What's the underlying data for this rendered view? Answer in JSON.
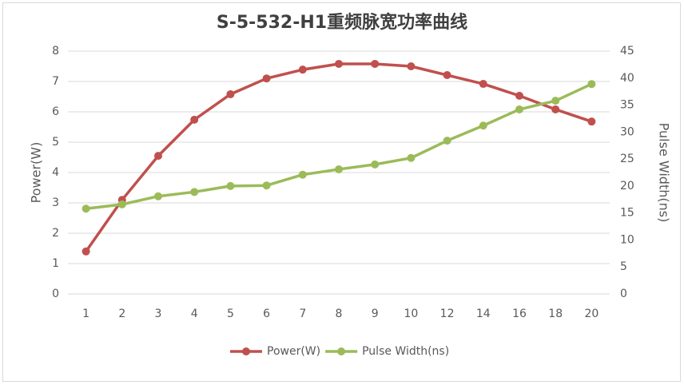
{
  "chart_data": {
    "type": "line",
    "title": "S-5-532-H1重频脉宽功率曲线",
    "categories": [
      "1",
      "2",
      "3",
      "4",
      "5",
      "6",
      "7",
      "8",
      "9",
      "10",
      "12",
      "14",
      "16",
      "18",
      "20"
    ],
    "ylabel": "Power(W)",
    "y2label": "Pulse Width(ns)",
    "ylim": [
      0,
      8
    ],
    "yticks": [
      0,
      1,
      2,
      3,
      4,
      5,
      6,
      7,
      8
    ],
    "y2lim": [
      0,
      45
    ],
    "y2ticks": [
      0,
      5,
      10,
      15,
      20,
      25,
      30,
      35,
      40,
      45
    ],
    "grid": true,
    "legend": "bottom",
    "series": [
      {
        "name": "Power(W)",
        "color": "#c0504d",
        "values": [
          1.4,
          3.1,
          4.55,
          5.74,
          6.58,
          7.1,
          7.39,
          7.58,
          7.58,
          7.5,
          7.21,
          6.92,
          6.53,
          6.08,
          5.68
        ]
      },
      {
        "name": "Pulse Width(ns)",
        "color": "#9bbb59",
        "axis": "y2",
        "values": [
          15.8,
          16.6,
          18.1,
          18.9,
          20.0,
          20.1,
          22.1,
          23.1,
          24.0,
          25.2,
          28.4,
          31.2,
          34.2,
          35.8,
          38.9
        ]
      }
    ]
  }
}
